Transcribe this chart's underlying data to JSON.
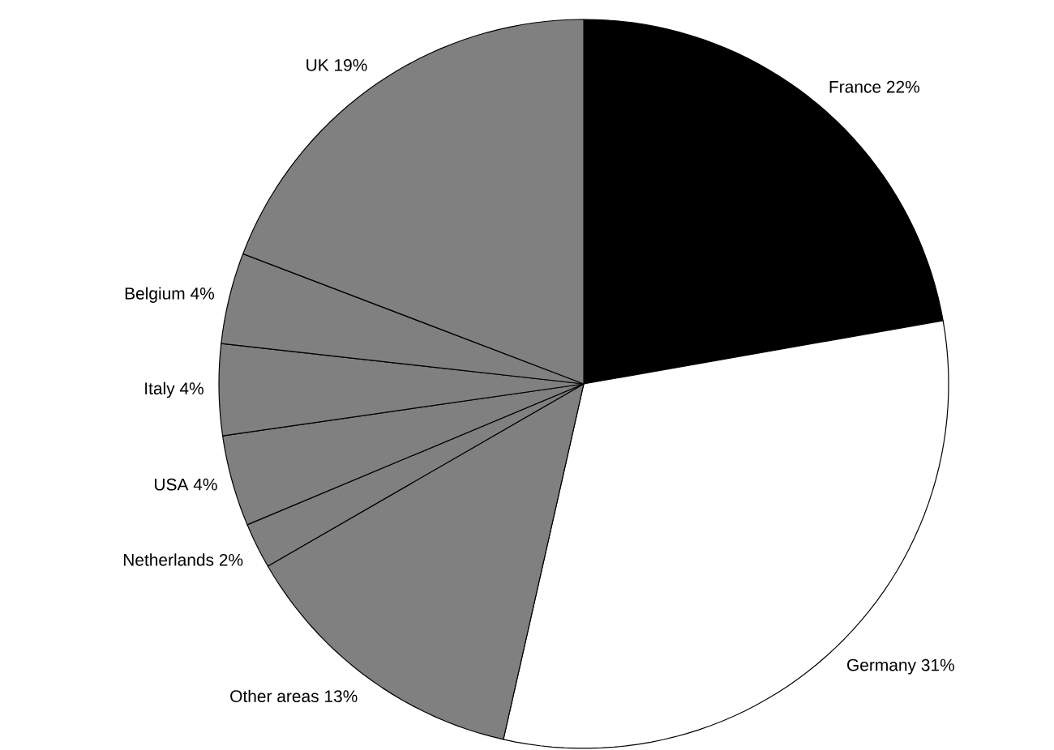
{
  "chart_data": {
    "type": "pie",
    "categories": [
      "France",
      "Germany",
      "Other areas",
      "Netherlands",
      "USA",
      "Italy",
      "Belgium",
      "UK"
    ],
    "values": [
      22,
      31,
      13,
      2,
      4,
      4,
      4,
      19
    ],
    "value_labels": [
      "22%",
      "31%",
      "13%",
      "2%",
      "4%",
      "4%",
      "4%",
      "19%"
    ],
    "colors": [
      "#000000",
      "#ffffff",
      "#808080",
      "#808080",
      "#808080",
      "#808080",
      "#808080",
      "#808080"
    ]
  }
}
